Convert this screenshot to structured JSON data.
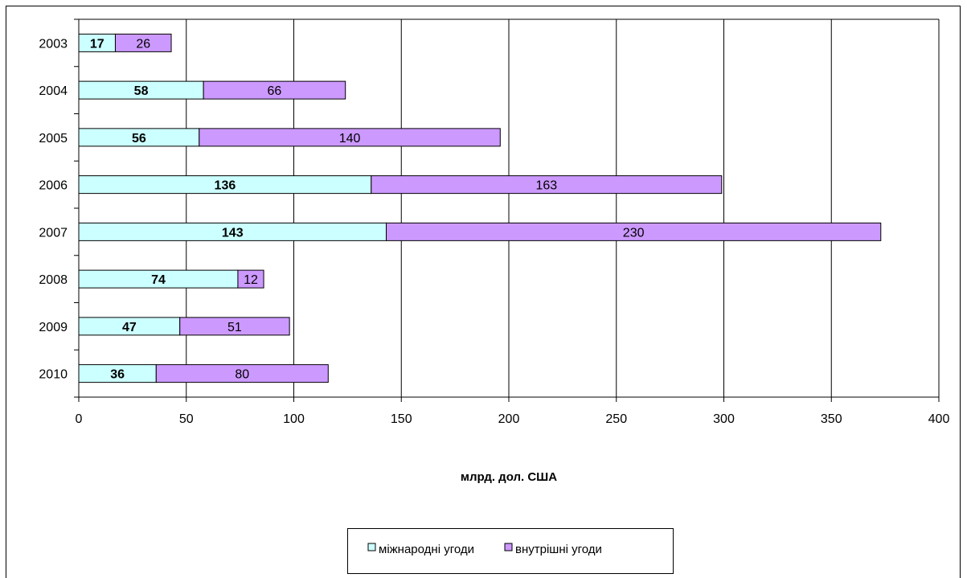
{
  "chart_data": {
    "type": "bar",
    "orientation": "horizontal",
    "stacked": true,
    "categories": [
      "2003",
      "2004",
      "2005",
      "2006",
      "2007",
      "2008",
      "2009",
      "2010"
    ],
    "series": [
      {
        "name": "міжнародні угоди",
        "values": [
          17,
          58,
          56,
          136,
          143,
          74,
          47,
          36
        ],
        "color": "#ccffff",
        "label_bold": true
      },
      {
        "name": "внутрішні угоди",
        "values": [
          26,
          66,
          140,
          163,
          230,
          12,
          51,
          80
        ],
        "color": "#cc99ff",
        "label_bold": false
      }
    ],
    "xlabel": "млрд. дол. США",
    "ylabel": "",
    "xlim": [
      0,
      400
    ],
    "xticks": [
      "0",
      "50",
      "100",
      "150",
      "200",
      "250",
      "300",
      "350",
      "400"
    ],
    "grid": "vertical",
    "legend": "bottom-center"
  }
}
